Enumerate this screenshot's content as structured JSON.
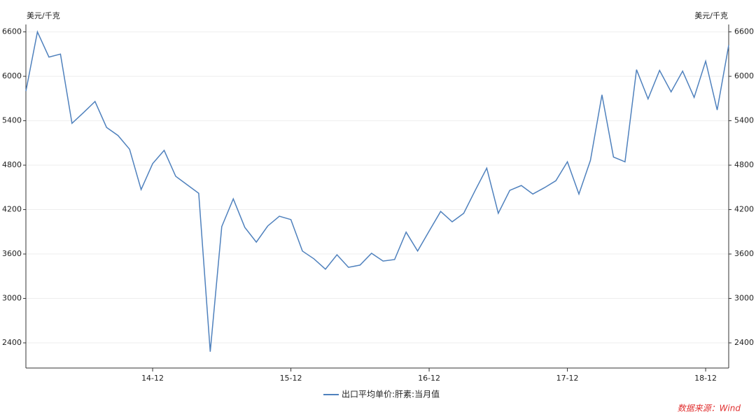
{
  "chart_data": {
    "type": "line",
    "y_axis_label": "美元/千克",
    "y2_axis_label": "美元/千克",
    "source": "数据来源：Wind",
    "categories": [
      null,
      null,
      null,
      null,
      null,
      null,
      null,
      null,
      null,
      null,
      null,
      "14-12",
      null,
      null,
      null,
      null,
      null,
      null,
      null,
      null,
      null,
      null,
      null,
      "15-12",
      null,
      null,
      null,
      null,
      null,
      null,
      null,
      null,
      null,
      null,
      null,
      "16-12",
      null,
      null,
      null,
      null,
      null,
      null,
      null,
      null,
      null,
      null,
      null,
      "17-12",
      null,
      null,
      null,
      null,
      null,
      null,
      null,
      null,
      null,
      null,
      null,
      "18-12",
      null,
      null
    ],
    "series": [
      {
        "name": "出口平均单价:肝素:当月值",
        "color": "#4f81bd",
        "values": [
          5800,
          6600,
          6260,
          6300,
          5365,
          5510,
          5660,
          5310,
          5200,
          5015,
          4470,
          4820,
          5000,
          4650,
          4535,
          4420,
          2280,
          3970,
          4345,
          3960,
          3760,
          3980,
          4110,
          4065,
          3640,
          3535,
          3395,
          3590,
          3420,
          3450,
          3610,
          3505,
          3525,
          3895,
          3640,
          3910,
          4175,
          4035,
          4150,
          4460,
          4760,
          4150,
          4460,
          4525,
          4410,
          4495,
          4590,
          4845,
          4410,
          4865,
          5750,
          4910,
          4845,
          6090,
          5695,
          6080,
          5790,
          6070,
          5715,
          6205,
          5545,
          6420
        ]
      }
    ],
    "ylim": [
      2060,
      6700
    ],
    "yticks": [
      2400,
      3000,
      3600,
      4200,
      4800,
      5400,
      6000,
      6600
    ],
    "y2lim": [
      2060,
      6700
    ],
    "y2ticks": [
      2400,
      3000,
      3600,
      4200,
      4800,
      5400,
      6000,
      6600
    ],
    "grid": true
  }
}
